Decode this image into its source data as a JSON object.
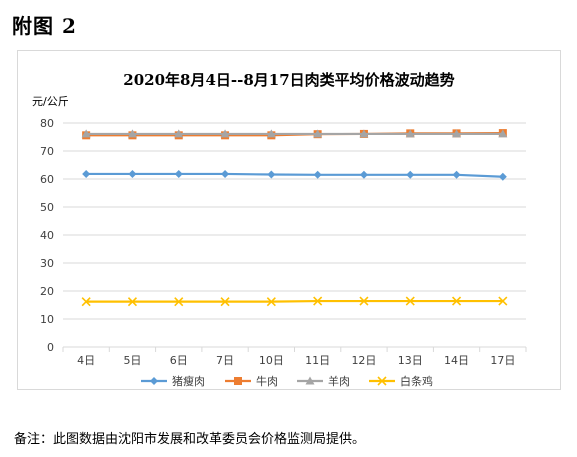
{
  "heading": "附图 2",
  "footnote": "备注：此图数据由沈阳市发展和改革委员会价格监测局提供。",
  "chart_data": {
    "type": "line",
    "title": "2020年8月4日--8月17日肉类平均价格波动趋势",
    "ylabel": "元/公斤",
    "xlabel": "",
    "ylim": [
      0,
      80
    ],
    "yticks": [
      0,
      10,
      20,
      30,
      40,
      50,
      60,
      70,
      80
    ],
    "grid": true,
    "legend_position": "bottom",
    "categories": [
      "4日",
      "5日",
      "6日",
      "7日",
      "10日",
      "11日",
      "12日",
      "13日",
      "14日",
      "17日"
    ],
    "series": [
      {
        "name": "猪瘦肉",
        "color": "#5b9bd5",
        "marker": "diamond",
        "values": [
          61.8,
          61.8,
          61.8,
          61.8,
          61.6,
          61.5,
          61.5,
          61.5,
          61.5,
          60.8
        ]
      },
      {
        "name": "牛肉",
        "color": "#ed7d31",
        "marker": "square",
        "values": [
          75.6,
          75.6,
          75.6,
          75.6,
          75.6,
          76.0,
          76.1,
          76.3,
          76.3,
          76.4
        ]
      },
      {
        "name": "羊肉",
        "color": "#a5a5a5",
        "marker": "triangle",
        "values": [
          76.1,
          76.1,
          76.1,
          76.1,
          76.1,
          76.1,
          76.1,
          76.1,
          76.1,
          76.1
        ]
      },
      {
        "name": "白条鸡",
        "color": "#ffc000",
        "marker": "cross",
        "values": [
          16.2,
          16.2,
          16.2,
          16.2,
          16.2,
          16.4,
          16.4,
          16.4,
          16.4,
          16.4
        ]
      }
    ]
  }
}
